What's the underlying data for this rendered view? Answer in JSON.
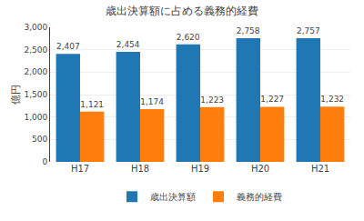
{
  "chart_data": {
    "type": "bar",
    "title": "歳出決算額に占める義務的経費",
    "ylabel": "億円",
    "categories": [
      "H17",
      "H18",
      "H19",
      "H20",
      "H21"
    ],
    "series": [
      {
        "name": "歳出決算額",
        "values": [
          2407,
          2454,
          2620,
          2758,
          2757
        ],
        "value_labels": [
          "2,407",
          "2,454",
          "2,620",
          "2,758",
          "2,757"
        ]
      },
      {
        "name": "義務的経費",
        "values": [
          1121,
          1174,
          1223,
          1227,
          1232
        ],
        "value_labels": [
          "1,121",
          "1,174",
          "1,223",
          "1,227",
          "1,232"
        ]
      }
    ],
    "ylim": [
      0,
      3000
    ],
    "yticks": [
      0,
      500,
      {
        "value": 1000,
        "label": "1,000"
      },
      {
        "value": 1500,
        "label": "1,500"
      },
      {
        "value": 2000,
        "label": "2,000"
      },
      {
        "value": 2500,
        "label": "2,500"
      },
      {
        "value": 3000,
        "label": "3,000"
      }
    ],
    "grid": true,
    "legend": "bottom",
    "data_labels": true
  }
}
